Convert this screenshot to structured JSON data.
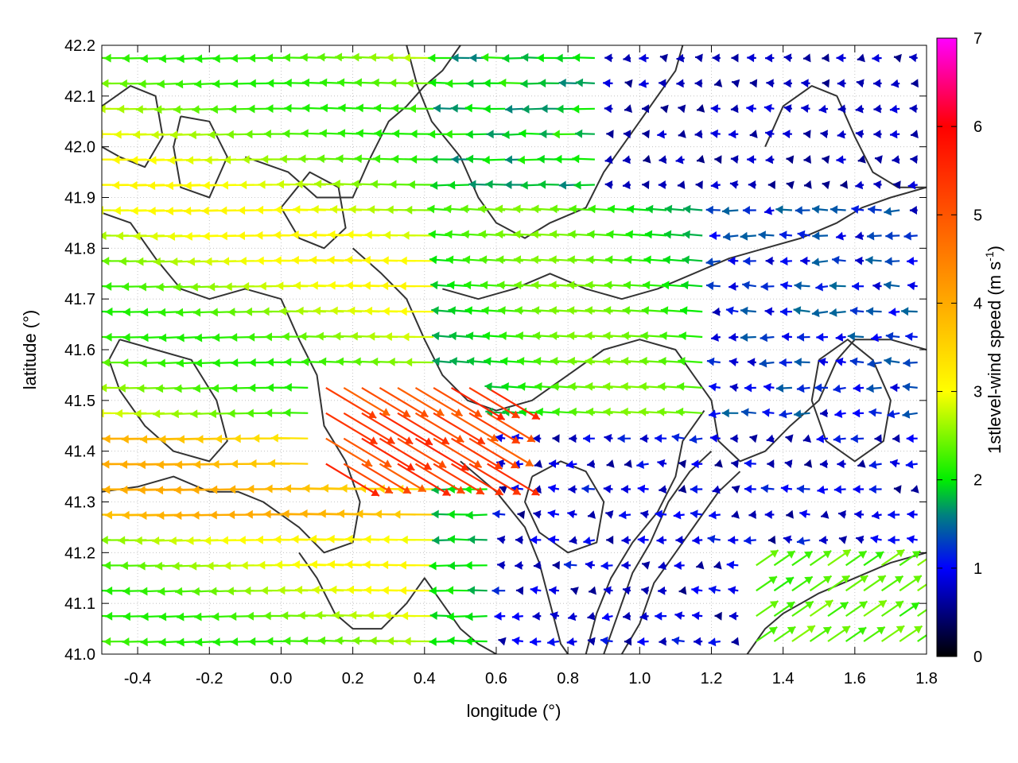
{
  "chart_data": {
    "type": "vector-field",
    "title": "",
    "xlabel": "longitude (°)",
    "ylabel": "latitude (°)",
    "xlim": [
      -0.5,
      1.8
    ],
    "ylim": [
      41.0,
      42.2
    ],
    "x_ticks": [
      "-0.4",
      "-0.2",
      "0.0",
      "0.2",
      "0.4",
      "0.6",
      "0.8",
      "1.0",
      "1.2",
      "1.4",
      "1.6",
      "1.8"
    ],
    "y_ticks": [
      "41.0",
      "41.1",
      "41.2",
      "41.3",
      "41.4",
      "41.5",
      "41.6",
      "41.7",
      "41.8",
      "41.9",
      "42.0",
      "42.1",
      "42.2"
    ],
    "grid": true,
    "colorbar": {
      "label_text": "1stlevel-wind speed (m s",
      "label_exponent": "-1",
      "label_close": ")",
      "range": [
        0,
        7
      ],
      "ticks": [
        "0",
        "1",
        "2",
        "3",
        "4",
        "5",
        "6",
        "7"
      ],
      "stops": [
        {
          "value": 0.0,
          "color": "#000000"
        },
        {
          "value": 1.0,
          "color": "#0000ff"
        },
        {
          "value": 1.6,
          "color": "#008080"
        },
        {
          "value": 2.0,
          "color": "#00ee00"
        },
        {
          "value": 3.0,
          "color": "#ffff00"
        },
        {
          "value": 4.0,
          "color": "#ffaa00"
        },
        {
          "value": 5.0,
          "color": "#ff5500"
        },
        {
          "value": 6.0,
          "color": "#ff0000"
        },
        {
          "value": 7.0,
          "color": "#ff00ff"
        }
      ]
    },
    "vector_grid": {
      "dx": 0.05,
      "dy": 0.05
    },
    "vector_regimes": [
      {
        "region": "west",
        "lon_range": [
          -0.5,
          0.45
        ],
        "lat_range": [
          41.0,
          42.2
        ],
        "mean_direction": "from east",
        "typical_speed": 2.8
      },
      {
        "region": "center",
        "lon_range": [
          0.45,
          1.2
        ],
        "lat_range": [
          41.45,
          41.9
        ],
        "mean_direction": "from east",
        "typical_speed": 2.2
      },
      {
        "region": "north-east",
        "lon_range": [
          0.9,
          1.8
        ],
        "lat_range": [
          41.9,
          42.2
        ],
        "mean_direction": "variable",
        "typical_speed": 0.6
      },
      {
        "region": "south-east",
        "lon_range": [
          1.3,
          1.8
        ],
        "lat_range": [
          41.0,
          41.2
        ],
        "mean_direction": "from south-west",
        "typical_speed": 2.3
      },
      {
        "region": "jet",
        "lon_range": [
          0.1,
          0.6
        ],
        "lat_range": [
          41.35,
          41.55
        ],
        "mean_direction": "from north-west",
        "typical_speed": 5.8
      }
    ],
    "contours": [
      {
        "points": [
          [
            -0.5,
            42.08
          ],
          [
            -0.42,
            42.12
          ],
          [
            -0.35,
            42.1
          ],
          [
            -0.33,
            42.02
          ],
          [
            -0.38,
            41.96
          ],
          [
            -0.45,
            41.98
          ],
          [
            -0.5,
            42.0
          ]
        ]
      },
      {
        "points": [
          [
            -0.28,
            42.06
          ],
          [
            -0.2,
            42.05
          ],
          [
            -0.15,
            41.98
          ],
          [
            -0.2,
            41.9
          ],
          [
            -0.28,
            41.92
          ],
          [
            -0.3,
            42.0
          ],
          [
            -0.28,
            42.06
          ]
        ]
      },
      {
        "points": [
          [
            -0.5,
            41.87
          ],
          [
            -0.42,
            41.85
          ],
          [
            -0.35,
            41.78
          ],
          [
            -0.28,
            41.72
          ],
          [
            -0.2,
            41.7
          ],
          [
            -0.1,
            41.72
          ],
          [
            0.0,
            41.7
          ],
          [
            0.05,
            41.62
          ],
          [
            0.1,
            41.55
          ],
          [
            0.12,
            41.45
          ],
          [
            0.18,
            41.38
          ],
          [
            0.22,
            41.3
          ],
          [
            0.2,
            41.22
          ],
          [
            0.12,
            41.2
          ],
          [
            0.05,
            41.25
          ],
          [
            -0.05,
            41.3
          ],
          [
            -0.12,
            41.32
          ],
          [
            -0.2,
            41.32
          ],
          [
            -0.3,
            41.35
          ],
          [
            -0.4,
            41.33
          ],
          [
            -0.5,
            41.32
          ]
        ]
      },
      {
        "points": [
          [
            -0.45,
            41.62
          ],
          [
            -0.35,
            41.6
          ],
          [
            -0.25,
            41.58
          ],
          [
            -0.18,
            41.5
          ],
          [
            -0.15,
            41.42
          ],
          [
            -0.2,
            41.38
          ],
          [
            -0.3,
            41.4
          ],
          [
            -0.38,
            41.45
          ],
          [
            -0.45,
            41.52
          ],
          [
            -0.48,
            41.58
          ],
          [
            -0.45,
            41.62
          ]
        ]
      },
      {
        "points": [
          [
            -0.1,
            41.98
          ],
          [
            0.02,
            41.95
          ],
          [
            0.1,
            41.9
          ],
          [
            0.2,
            41.9
          ],
          [
            0.25,
            41.98
          ],
          [
            0.3,
            42.05
          ],
          [
            0.35,
            42.08
          ],
          [
            0.4,
            42.12
          ],
          [
            0.45,
            42.15
          ],
          [
            0.5,
            42.2
          ]
        ]
      },
      {
        "points": [
          [
            0.35,
            42.2
          ],
          [
            0.38,
            42.12
          ],
          [
            0.42,
            42.05
          ],
          [
            0.5,
            41.98
          ],
          [
            0.55,
            41.9
          ],
          [
            0.6,
            41.85
          ],
          [
            0.68,
            41.82
          ],
          [
            0.75,
            41.85
          ],
          [
            0.85,
            41.88
          ],
          [
            0.9,
            41.95
          ],
          [
            0.95,
            42.0
          ],
          [
            1.0,
            42.05
          ],
          [
            1.05,
            42.1
          ],
          [
            1.1,
            42.15
          ],
          [
            1.12,
            42.2
          ]
        ]
      },
      {
        "points": [
          [
            0.2,
            41.8
          ],
          [
            0.28,
            41.75
          ],
          [
            0.35,
            41.7
          ],
          [
            0.4,
            41.62
          ],
          [
            0.45,
            41.55
          ],
          [
            0.52,
            41.5
          ],
          [
            0.6,
            41.48
          ],
          [
            0.7,
            41.5
          ],
          [
            0.8,
            41.55
          ],
          [
            0.9,
            41.6
          ],
          [
            1.0,
            41.62
          ],
          [
            1.1,
            41.6
          ],
          [
            1.15,
            41.55
          ],
          [
            1.2,
            41.5
          ],
          [
            1.22,
            41.42
          ],
          [
            1.28,
            41.38
          ],
          [
            1.35,
            41.4
          ],
          [
            1.42,
            41.45
          ],
          [
            1.5,
            41.5
          ],
          [
            1.55,
            41.58
          ],
          [
            1.6,
            41.62
          ],
          [
            1.7,
            41.62
          ],
          [
            1.8,
            41.6
          ]
        ]
      },
      {
        "points": [
          [
            0.45,
            41.72
          ],
          [
            0.55,
            41.7
          ],
          [
            0.65,
            41.72
          ],
          [
            0.75,
            41.75
          ],
          [
            0.85,
            41.72
          ],
          [
            0.95,
            41.7
          ],
          [
            1.05,
            41.72
          ],
          [
            1.15,
            41.75
          ],
          [
            1.25,
            41.78
          ],
          [
            1.35,
            41.8
          ],
          [
            1.45,
            41.82
          ],
          [
            1.55,
            41.85
          ],
          [
            1.62,
            41.88
          ],
          [
            1.7,
            41.9
          ],
          [
            1.8,
            41.92
          ]
        ]
      },
      {
        "points": [
          [
            0.5,
            41.38
          ],
          [
            0.6,
            41.32
          ],
          [
            0.68,
            41.25
          ],
          [
            0.72,
            41.18
          ],
          [
            0.75,
            41.1
          ],
          [
            0.78,
            41.02
          ],
          [
            0.8,
            41.0
          ]
        ]
      },
      {
        "points": [
          [
            0.85,
            41.0
          ],
          [
            0.88,
            41.08
          ],
          [
            0.92,
            41.15
          ],
          [
            0.98,
            41.22
          ],
          [
            1.05,
            41.28
          ],
          [
            1.1,
            41.35
          ],
          [
            1.12,
            41.42
          ],
          [
            1.18,
            41.48
          ]
        ]
      },
      {
        "points": [
          [
            0.9,
            41.0
          ],
          [
            0.94,
            41.08
          ],
          [
            0.98,
            41.16
          ],
          [
            1.03,
            41.22
          ],
          [
            1.08,
            41.3
          ],
          [
            1.14,
            41.36
          ],
          [
            1.2,
            41.4
          ]
        ]
      },
      {
        "points": [
          [
            0.95,
            41.0
          ],
          [
            1.0,
            41.06
          ],
          [
            1.04,
            41.14
          ],
          [
            1.1,
            41.2
          ],
          [
            1.16,
            41.26
          ],
          [
            1.22,
            41.32
          ],
          [
            1.28,
            41.36
          ]
        ]
      },
      {
        "points": [
          [
            1.3,
            41.0
          ],
          [
            1.35,
            41.05
          ],
          [
            1.4,
            41.08
          ],
          [
            1.5,
            41.12
          ],
          [
            1.6,
            41.15
          ],
          [
            1.7,
            41.18
          ],
          [
            1.8,
            41.2
          ]
        ]
      },
      {
        "points": [
          [
            0.05,
            41.2
          ],
          [
            0.1,
            41.15
          ],
          [
            0.15,
            41.08
          ],
          [
            0.2,
            41.05
          ],
          [
            0.28,
            41.05
          ],
          [
            0.35,
            41.1
          ],
          [
            0.4,
            41.15
          ],
          [
            0.45,
            41.1
          ],
          [
            0.5,
            41.05
          ],
          [
            0.55,
            41.02
          ],
          [
            0.6,
            41.0
          ]
        ]
      },
      {
        "points": [
          [
            0.7,
            41.35
          ],
          [
            0.78,
            41.38
          ],
          [
            0.85,
            41.36
          ],
          [
            0.9,
            41.3
          ],
          [
            0.88,
            41.22
          ],
          [
            0.8,
            41.2
          ],
          [
            0.72,
            41.24
          ],
          [
            0.68,
            41.3
          ],
          [
            0.7,
            41.35
          ]
        ]
      },
      {
        "points": [
          [
            1.35,
            42.0
          ],
          [
            1.4,
            42.08
          ],
          [
            1.48,
            42.12
          ],
          [
            1.55,
            42.1
          ],
          [
            1.6,
            42.02
          ],
          [
            1.65,
            41.95
          ],
          [
            1.72,
            41.92
          ],
          [
            1.8,
            41.92
          ]
        ]
      },
      {
        "points": [
          [
            1.5,
            41.58
          ],
          [
            1.48,
            41.5
          ],
          [
            1.52,
            41.42
          ],
          [
            1.6,
            41.38
          ],
          [
            1.68,
            41.42
          ],
          [
            1.7,
            41.5
          ],
          [
            1.65,
            41.58
          ],
          [
            1.58,
            41.62
          ],
          [
            1.5,
            41.58
          ]
        ]
      },
      {
        "points": [
          [
            0.0,
            41.88
          ],
          [
            0.05,
            41.82
          ],
          [
            0.12,
            41.8
          ],
          [
            0.18,
            41.84
          ],
          [
            0.16,
            41.92
          ],
          [
            0.08,
            41.95
          ],
          [
            0.0,
            41.88
          ]
        ]
      }
    ]
  }
}
